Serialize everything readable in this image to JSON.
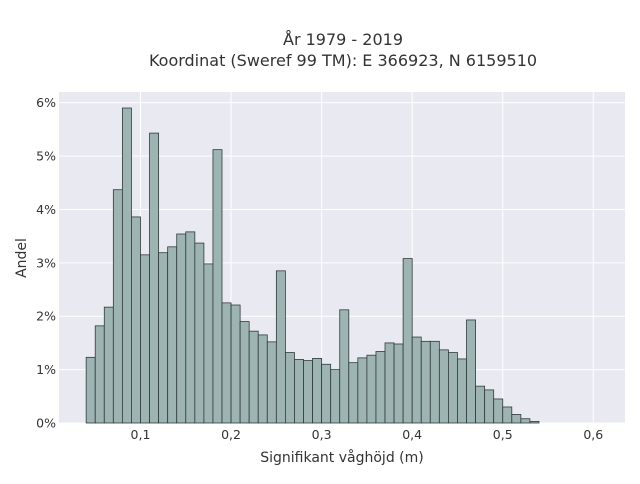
{
  "chart_data": {
    "type": "bar",
    "title": "År 1979 - 2019",
    "subtitle": "Koordinat (Sweref 99 TM): E 366923, N 6159510",
    "xlabel": "Signifikant våghöjd (m)",
    "ylabel": "Andel",
    "xlim": [
      0.01,
      0.635
    ],
    "ylim": [
      0,
      6.2
    ],
    "bin_start": 0.04,
    "bin_width": 0.01,
    "x_ticks": [
      0.1,
      0.2,
      0.3,
      0.4,
      0.5,
      0.6
    ],
    "x_tick_labels": [
      "0,1",
      "0,2",
      "0,3",
      "0,4",
      "0,5",
      "0,6"
    ],
    "y_ticks": [
      0,
      1,
      2,
      3,
      4,
      5,
      6
    ],
    "y_tick_labels": [
      "0%",
      "1%",
      "2%",
      "3%",
      "4%",
      "5%",
      "6%"
    ],
    "values": [
      1.23,
      1.82,
      2.17,
      4.37,
      5.9,
      3.86,
      3.15,
      5.43,
      3.19,
      3.3,
      3.54,
      3.58,
      3.37,
      2.98,
      5.12,
      2.25,
      2.21,
      1.9,
      1.72,
      1.65,
      1.52,
      2.85,
      1.32,
      1.19,
      1.17,
      1.21,
      1.1,
      1.0,
      2.12,
      1.13,
      1.22,
      1.27,
      1.34,
      1.5,
      1.48,
      3.08,
      1.61,
      1.53,
      1.53,
      1.37,
      1.32,
      1.2,
      1.93,
      0.69,
      0.62,
      0.45,
      0.3,
      0.16,
      0.08,
      0.03
    ],
    "grid": true,
    "colors": {
      "bar_fill": "#9db4b3",
      "bar_stroke": "#2f3b3b",
      "plot_bg": "#e9e9f1",
      "grid": "#ffffff"
    }
  }
}
